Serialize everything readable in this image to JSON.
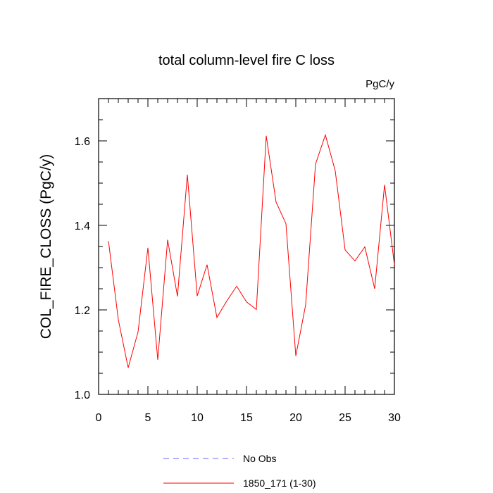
{
  "chart_data": {
    "type": "line",
    "title": "total column-level fire C loss",
    "units": "PgC/y",
    "ylabel": "COL_FIRE_CLOSS  (PgC/y)",
    "xlabel": "",
    "xlim": [
      0,
      30
    ],
    "ylim": [
      1.0,
      1.7
    ],
    "xticks": [
      0,
      5,
      10,
      15,
      20,
      25,
      30
    ],
    "yticks": [
      1.0,
      1.2,
      1.4,
      1.6
    ],
    "xtick_labels": [
      "0",
      "5",
      "10",
      "15",
      "20",
      "25",
      "30"
    ],
    "ytick_labels": [
      "1.0",
      "1.2",
      "1.4",
      "1.6"
    ],
    "grid": false,
    "legend_position": "bottom",
    "series": [
      {
        "name": "1850_171 (1-30)",
        "color": "#ff0000",
        "style": "solid",
        "x": [
          1,
          2,
          3,
          4,
          5,
          6,
          7,
          8,
          9,
          10,
          11,
          12,
          13,
          14,
          15,
          16,
          17,
          18,
          19,
          20,
          21,
          22,
          23,
          24,
          25,
          26,
          27,
          28,
          29,
          30
        ],
        "values": [
          1.363,
          1.177,
          1.063,
          1.148,
          1.347,
          1.082,
          1.366,
          1.232,
          1.52,
          1.233,
          1.307,
          1.182,
          1.221,
          1.256,
          1.219,
          1.201,
          1.612,
          1.455,
          1.404,
          1.091,
          1.212,
          1.545,
          1.614,
          1.529,
          1.342,
          1.316,
          1.349,
          1.25,
          1.496,
          1.307
        ]
      }
    ],
    "legend": [
      {
        "label": "No Obs",
        "color": "#6666ff",
        "style": "dashed"
      },
      {
        "label": "1850_171 (1-30)",
        "color": "#ff0000",
        "style": "solid"
      }
    ]
  }
}
